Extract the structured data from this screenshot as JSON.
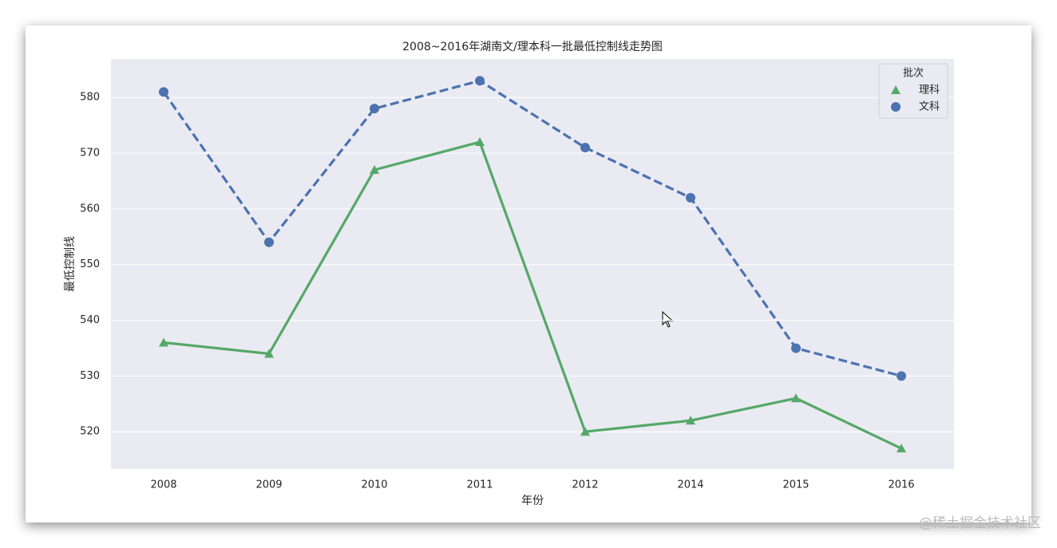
{
  "chart_data": {
    "type": "line",
    "title": "2008~2016年湖南文/理本科一批最低控制线走势图",
    "x_label": "年份",
    "y_label": "最低控制线",
    "categories": [
      "2008",
      "2009",
      "2010",
      "2011",
      "2012",
      "2014",
      "2015",
      "2016"
    ],
    "series": [
      {
        "name": "理科",
        "color": "#55a868",
        "marker": "triangle",
        "linestyle": "solid",
        "values": [
          536,
          534,
          567,
          572,
          520,
          522,
          526,
          517
        ]
      },
      {
        "name": "文科",
        "color": "#4c72b0",
        "marker": "circle",
        "linestyle": "dashed",
        "values": [
          581,
          554,
          578,
          583,
          571,
          562,
          535,
          530
        ]
      }
    ],
    "ylim": [
      513.3,
      586.9
    ],
    "yticks": [
      520,
      530,
      540,
      550,
      560,
      570,
      580
    ],
    "grid": true,
    "legend_title": "批次",
    "legend": "upper right"
  },
  "watermark": "@稀土掘金技术社区"
}
